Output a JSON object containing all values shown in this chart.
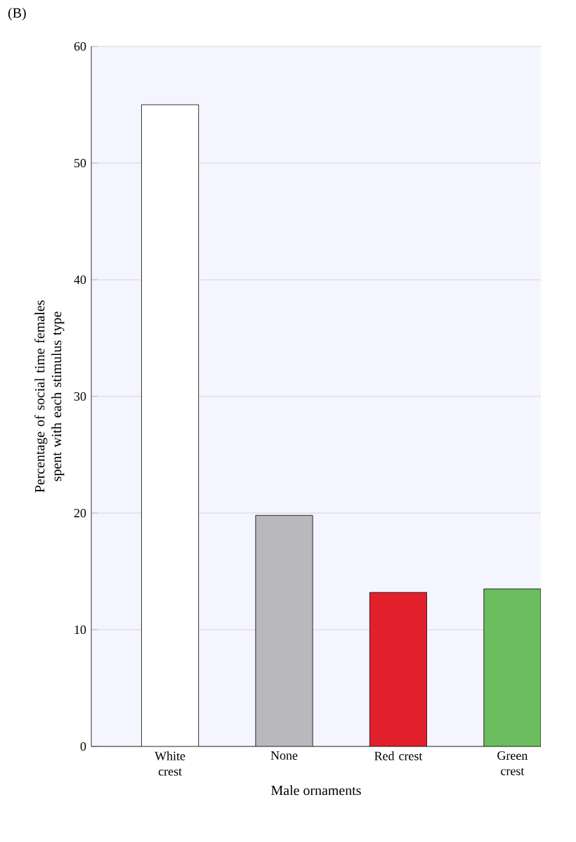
{
  "chart_data": {
    "type": "bar",
    "annotations": [
      "(B)"
    ],
    "xlabel": "Male ornaments",
    "ylabel": "Percentage of social time females spent with each stimulus type",
    "categories": [
      "White crest",
      "None",
      "Red crest",
      "Green crest"
    ],
    "values": [
      55,
      19.8,
      13.2,
      13.5
    ],
    "colors": [
      "#ffffff",
      "#b9b9bd",
      "#e2202c",
      "#6cbd5e"
    ],
    "ylim": [
      0,
      60
    ],
    "yticks": [
      0,
      10,
      20,
      30,
      40,
      50,
      60
    ],
    "grid": "y"
  }
}
